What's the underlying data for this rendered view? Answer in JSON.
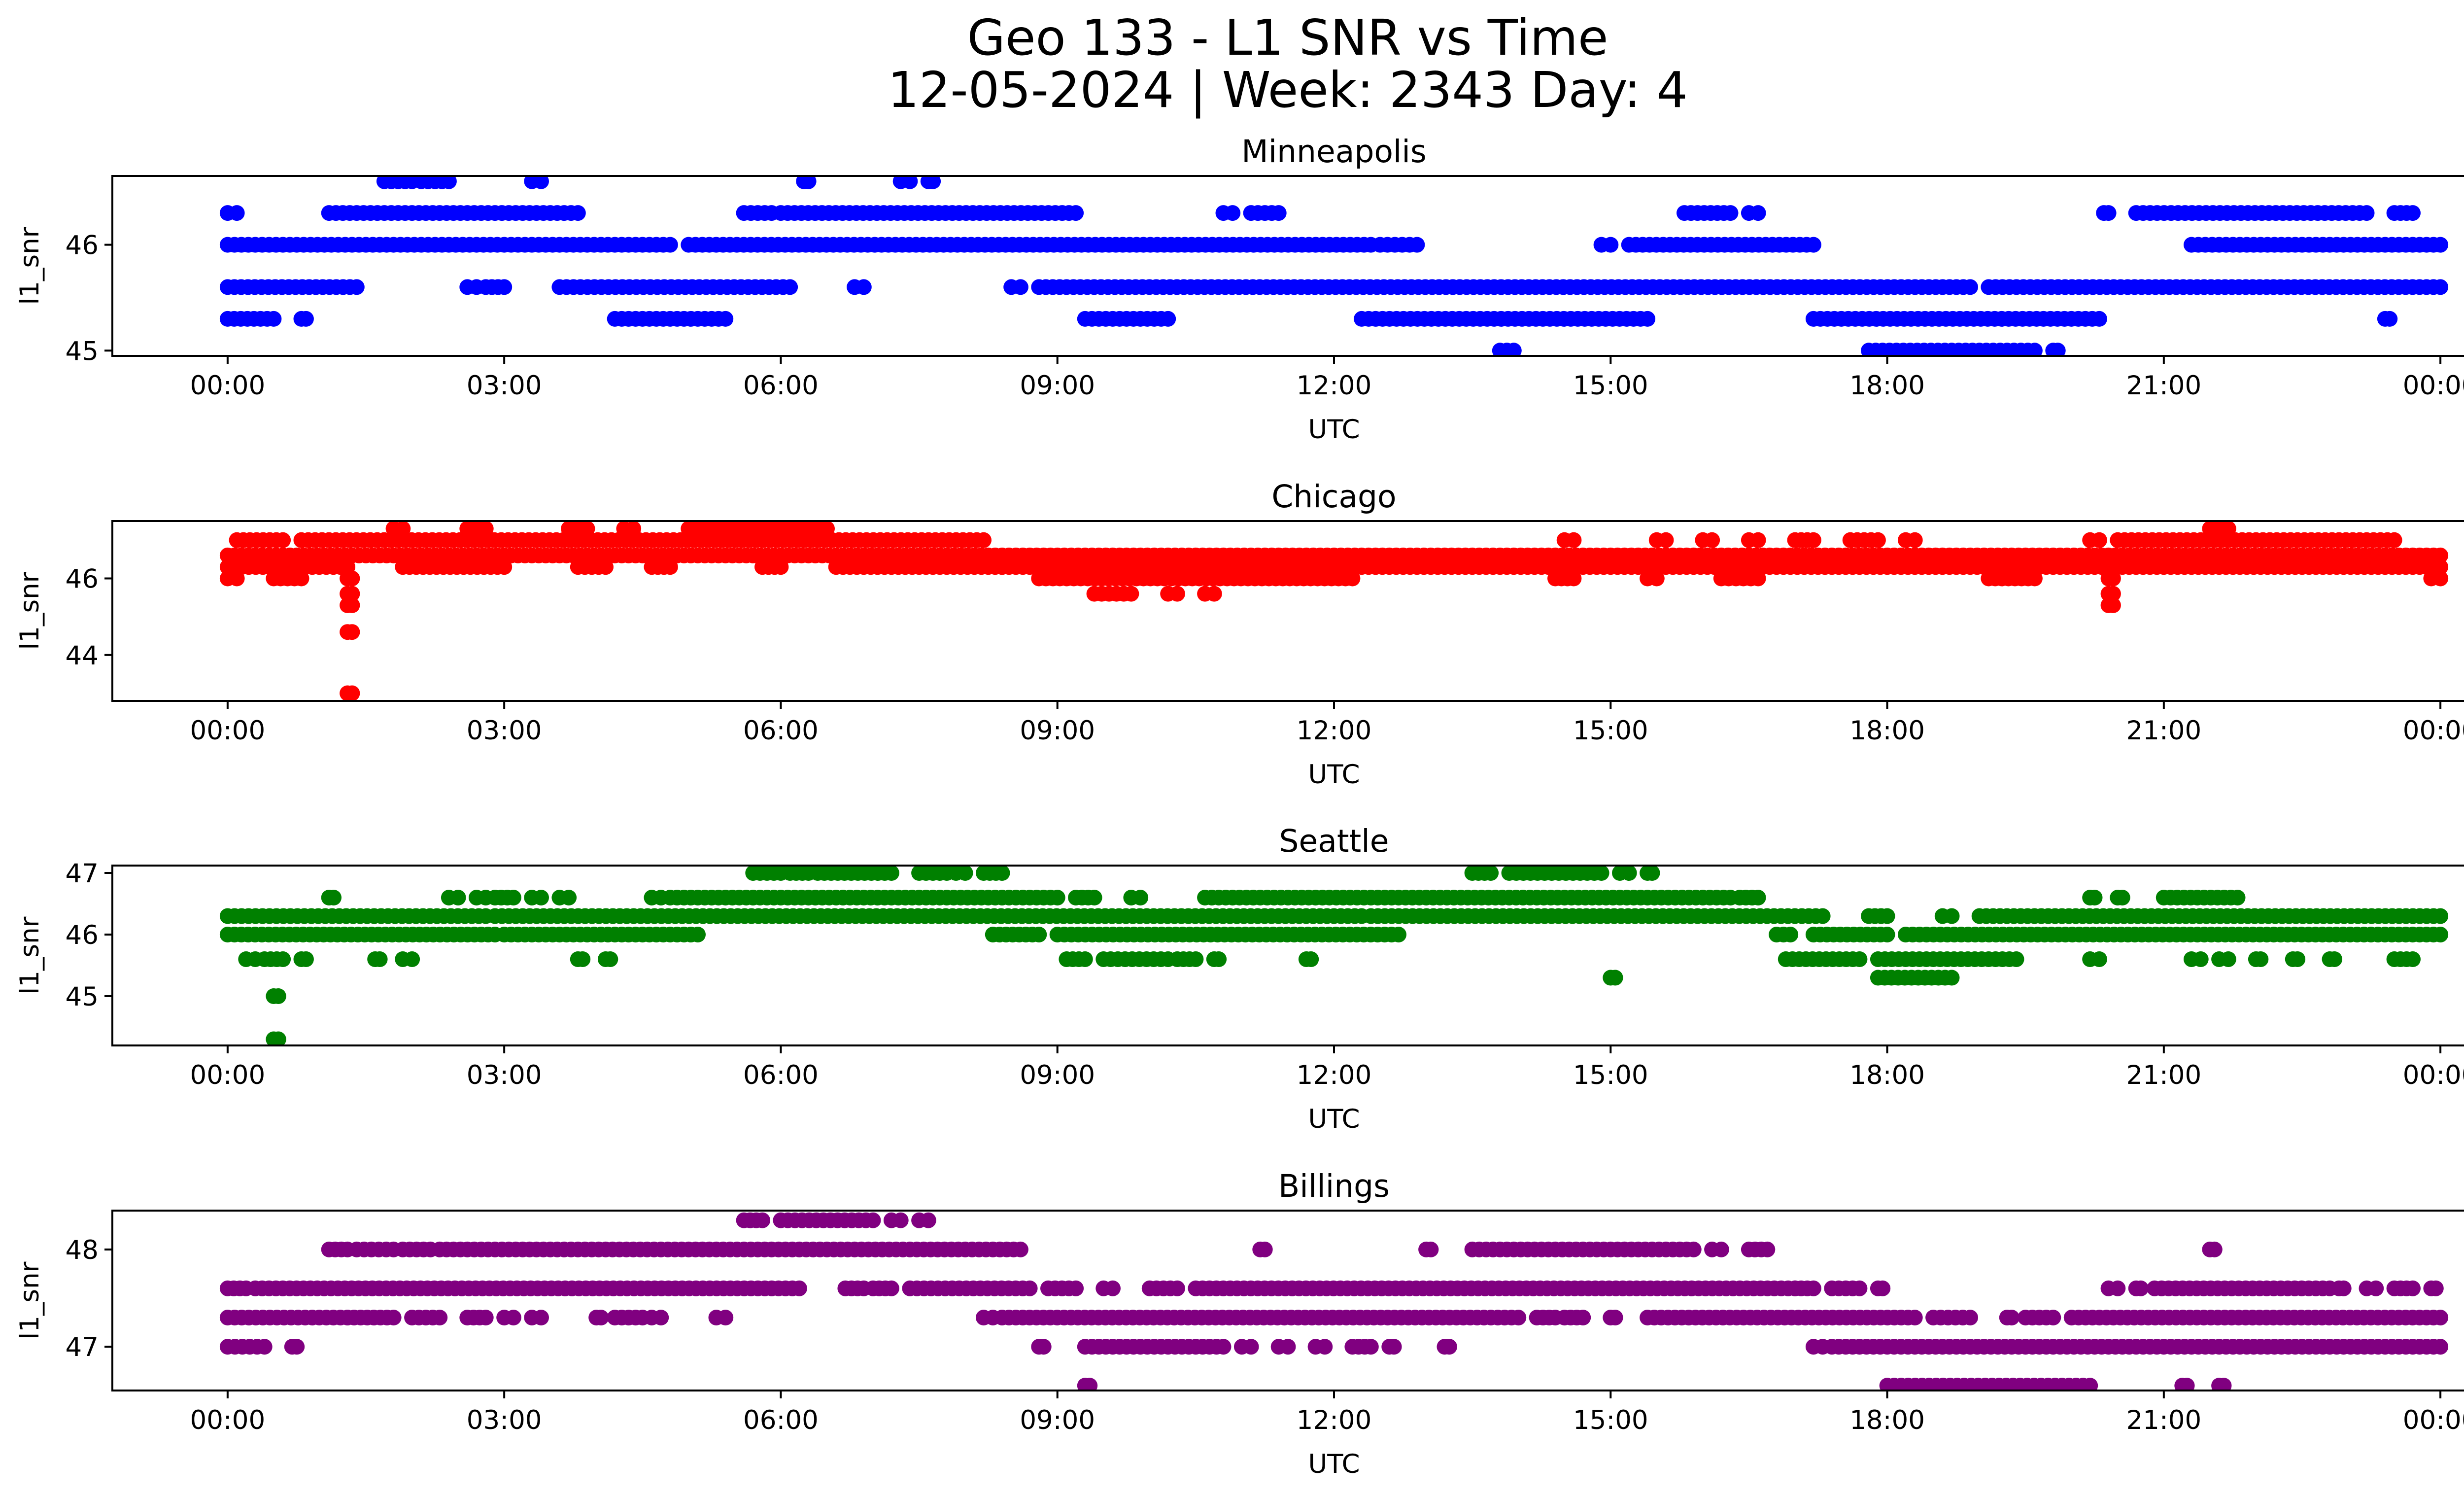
{
  "figure": {
    "title_line1": "Geo 133 - L1 SNR vs Time",
    "title_line2": "12-05-2024 | Week: 2343 Day: 4"
  },
  "chart_data": [
    {
      "type": "scatter",
      "title": "Minneapolis",
      "xlabel": "UTC",
      "ylabel": "l1_snr",
      "color": "#0000ff",
      "xlim": [
        -1.25,
        25.25
      ],
      "ylim": [
        44.95,
        46.65
      ],
      "x_ticks": [
        0,
        3,
        6,
        9,
        12,
        15,
        18,
        21,
        24
      ],
      "x_tick_labels": [
        "00:00",
        "03:00",
        "06:00",
        "09:00",
        "12:00",
        "15:00",
        "18:00",
        "21:00",
        "00:00"
      ],
      "y_ticks": [
        45,
        46
      ],
      "bands": [
        {
          "y": 46.6,
          "ranges": [
            [
              1.7,
              2.0
            ],
            [
              2.1,
              2.4
            ],
            [
              3.3,
              3.4
            ],
            [
              6.25,
              6.3
            ],
            [
              7.3,
              7.4
            ],
            [
              7.6,
              7.65
            ]
          ]
        },
        {
          "y": 46.3,
          "ranges": [
            [
              0.0,
              0.1
            ],
            [
              1.1,
              3.8
            ],
            [
              5.6,
              5.9
            ],
            [
              6.0,
              9.2
            ],
            [
              10.8,
              10.9
            ],
            [
              11.1,
              11.4
            ],
            [
              15.8,
              16.3
            ],
            [
              16.5,
              16.6
            ],
            [
              20.35,
              20.4
            ],
            [
              20.7,
              23.2
            ],
            [
              23.5,
              23.7
            ]
          ]
        },
        {
          "y": 46.0,
          "ranges": [
            [
              0.0,
              4.8
            ],
            [
              5.0,
              12.4
            ],
            [
              12.5,
              12.9
            ],
            [
              14.9,
              15.0
            ],
            [
              15.2,
              17.2
            ],
            [
              21.3,
              24.0
            ]
          ]
        },
        {
          "y": 45.6,
          "ranges": [
            [
              0.0,
              1.4
            ],
            [
              2.6,
              2.7
            ],
            [
              2.8,
              3.0
            ],
            [
              3.6,
              6.1
            ],
            [
              6.8,
              6.9
            ],
            [
              8.5,
              8.6
            ],
            [
              8.8,
              18.9
            ],
            [
              19.1,
              24.0
            ]
          ]
        },
        {
          "y": 45.3,
          "ranges": [
            [
              0.0,
              0.5
            ],
            [
              0.8,
              0.85
            ],
            [
              4.2,
              5.4
            ],
            [
              9.3,
              10.2
            ],
            [
              12.3,
              15.4
            ],
            [
              17.2,
              20.3
            ],
            [
              23.4,
              23.45
            ]
          ]
        },
        {
          "y": 45.0,
          "ranges": [
            [
              13.8,
              13.95
            ],
            [
              17.8,
              19.6
            ],
            [
              19.8,
              19.85
            ]
          ]
        }
      ]
    },
    {
      "type": "scatter",
      "title": "Chicago",
      "xlabel": "UTC",
      "ylabel": "l1_snr",
      "color": "#ff0000",
      "xlim": [
        -1.25,
        25.25
      ],
      "ylim": [
        42.8,
        47.5
      ],
      "x_ticks": [
        0,
        3,
        6,
        9,
        12,
        15,
        18,
        21,
        24
      ],
      "x_tick_labels": [
        "00:00",
        "03:00",
        "06:00",
        "09:00",
        "12:00",
        "15:00",
        "18:00",
        "21:00",
        "00:00"
      ],
      "y_ticks": [
        44,
        46
      ],
      "bands": [
        {
          "y": 47.3,
          "ranges": [
            [
              1.8,
              1.9
            ],
            [
              2.6,
              2.8
            ],
            [
              3.7,
              3.9
            ],
            [
              4.3,
              4.4
            ],
            [
              5.0,
              6.5
            ],
            [
              21.5,
              21.7
            ]
          ]
        },
        {
          "y": 47.0,
          "ranges": [
            [
              0.1,
              0.6
            ],
            [
              0.8,
              8.2
            ],
            [
              14.5,
              14.6
            ],
            [
              15.5,
              15.6
            ],
            [
              16.0,
              16.1
            ],
            [
              16.5,
              16.6
            ],
            [
              17.0,
              17.2
            ],
            [
              17.6,
              17.9
            ],
            [
              18.2,
              18.3
            ],
            [
              20.2,
              20.3
            ],
            [
              20.5,
              23.5
            ]
          ]
        },
        {
          "y": 46.6,
          "ranges": [
            [
              0.0,
              24.0
            ]
          ]
        },
        {
          "y": 46.3,
          "ranges": [
            [
              0.0,
              1.3
            ],
            [
              1.9,
              3.0
            ],
            [
              3.8,
              4.1
            ],
            [
              4.6,
              4.8
            ],
            [
              5.8,
              6.0
            ],
            [
              6.6,
              8.4
            ],
            [
              8.4,
              24.0
            ]
          ]
        },
        {
          "y": 46.0,
          "ranges": [
            [
              0.0,
              0.1
            ],
            [
              0.5,
              0.8
            ],
            [
              1.3,
              1.35
            ],
            [
              8.8,
              12.2
            ],
            [
              14.4,
              14.6
            ],
            [
              15.4,
              15.5
            ],
            [
              16.2,
              16.6
            ],
            [
              19.1,
              19.6
            ],
            [
              20.4,
              20.45
            ],
            [
              23.9,
              24.0
            ]
          ]
        },
        {
          "y": 45.6,
          "ranges": [
            [
              1.3,
              1.35
            ],
            [
              9.4,
              9.8
            ],
            [
              10.2,
              10.3
            ],
            [
              10.6,
              10.7
            ],
            [
              20.4,
              20.45
            ]
          ]
        },
        {
          "y": 45.3,
          "ranges": [
            [
              1.3,
              1.35
            ],
            [
              20.4,
              20.45
            ]
          ]
        },
        {
          "y": 44.6,
          "ranges": [
            [
              1.3,
              1.35
            ]
          ]
        },
        {
          "y": 43.0,
          "ranges": [
            [
              1.3,
              1.35
            ]
          ]
        }
      ]
    },
    {
      "type": "scatter",
      "title": "Seattle",
      "xlabel": "UTC",
      "ylabel": "l1_snr",
      "color": "#008000",
      "xlim": [
        -1.25,
        25.25
      ],
      "ylim": [
        44.2,
        47.12
      ],
      "x_ticks": [
        0,
        3,
        6,
        9,
        12,
        15,
        18,
        21,
        24
      ],
      "x_tick_labels": [
        "00:00",
        "03:00",
        "06:00",
        "09:00",
        "12:00",
        "15:00",
        "18:00",
        "21:00",
        "00:00"
      ],
      "y_ticks": [
        45,
        46,
        47
      ],
      "bands": [
        {
          "y": 47.0,
          "ranges": [
            [
              5.7,
              6.0
            ],
            [
              6.1,
              6.3
            ],
            [
              6.4,
              7.2
            ],
            [
              7.5,
              7.8
            ],
            [
              7.9,
              8.0
            ],
            [
              8.2,
              8.4
            ],
            [
              13.5,
              13.7
            ],
            [
              13.9,
              14.9
            ],
            [
              15.1,
              15.2
            ],
            [
              15.4,
              15.45
            ]
          ]
        },
        {
          "y": 46.6,
          "ranges": [
            [
              1.1,
              1.15
            ],
            [
              2.4,
              2.5
            ],
            [
              2.7,
              2.8
            ],
            [
              2.9,
              3.1
            ],
            [
              3.3,
              3.4
            ],
            [
              3.6,
              3.7
            ],
            [
              4.6,
              4.7
            ],
            [
              4.8,
              9.0
            ],
            [
              9.2,
              9.4
            ],
            [
              9.8,
              9.9
            ],
            [
              10.6,
              16.3
            ],
            [
              16.4,
              16.6
            ],
            [
              20.2,
              20.25
            ],
            [
              20.5,
              20.55
            ],
            [
              21.0,
              21.8
            ]
          ]
        },
        {
          "y": 46.3,
          "ranges": [
            [
              0.0,
              2.8
            ],
            [
              2.9,
              12.3
            ],
            [
              12.4,
              17.3
            ],
            [
              17.8,
              18.0
            ],
            [
              18.6,
              18.7
            ],
            [
              19.0,
              24.0
            ]
          ]
        },
        {
          "y": 46.0,
          "ranges": [
            [
              0.0,
              2.9
            ],
            [
              3.0,
              5.1
            ],
            [
              8.3,
              8.8
            ],
            [
              9.0,
              12.7
            ],
            [
              16.8,
              16.95
            ],
            [
              17.2,
              18.0
            ],
            [
              18.2,
              24.0
            ]
          ]
        },
        {
          "y": 45.6,
          "ranges": [
            [
              0.2,
              0.3
            ],
            [
              0.4,
              0.6
            ],
            [
              0.8,
              0.85
            ],
            [
              1.6,
              1.65
            ],
            [
              1.9,
              2.0
            ],
            [
              3.8,
              3.85
            ],
            [
              4.1,
              4.15
            ],
            [
              9.1,
              9.3
            ],
            [
              9.5,
              10.2
            ],
            [
              10.3,
              10.5
            ],
            [
              10.7,
              10.75
            ],
            [
              11.7,
              11.75
            ],
            [
              16.9,
              17.7
            ],
            [
              17.9,
              19.4
            ],
            [
              20.2,
              20.3
            ],
            [
              21.3,
              21.4
            ],
            [
              21.6,
              21.7
            ],
            [
              22.0,
              22.05
            ],
            [
              22.4,
              22.45
            ],
            [
              22.8,
              22.85
            ],
            [
              23.5,
              23.7
            ]
          ]
        },
        {
          "y": 45.3,
          "ranges": [
            [
              15.0,
              15.05
            ],
            [
              17.9,
              18.7
            ]
          ]
        },
        {
          "y": 45.0,
          "ranges": [
            [
              0.5,
              0.55
            ]
          ]
        },
        {
          "y": 44.3,
          "ranges": [
            [
              0.5,
              0.55
            ]
          ]
        }
      ]
    },
    {
      "type": "scatter",
      "title": "Billings",
      "xlabel": "UTC",
      "ylabel": "l1_snr",
      "color": "#800080",
      "xlim": [
        -1.25,
        25.25
      ],
      "ylim": [
        46.55,
        48.4
      ],
      "x_ticks": [
        0,
        3,
        6,
        9,
        12,
        15,
        18,
        21,
        24
      ],
      "x_tick_labels": [
        "00:00",
        "03:00",
        "06:00",
        "09:00",
        "12:00",
        "15:00",
        "18:00",
        "21:00",
        "00:00"
      ],
      "y_ticks": [
        47,
        48
      ],
      "bands": [
        {
          "y": 48.3,
          "ranges": [
            [
              5.6,
              5.8
            ],
            [
              6.0,
              7.0
            ],
            [
              7.2,
              7.3
            ],
            [
              7.5,
              7.6
            ]
          ]
        },
        {
          "y": 48.0,
          "ranges": [
            [
              1.1,
              1.3
            ],
            [
              1.4,
              1.8
            ],
            [
              1.9,
              2.2
            ],
            [
              2.3,
              8.6
            ],
            [
              11.2,
              11.25
            ],
            [
              13.0,
              13.05
            ],
            [
              13.5,
              15.9
            ],
            [
              16.1,
              16.2
            ],
            [
              16.5,
              16.7
            ],
            [
              21.5,
              21.55
            ]
          ]
        },
        {
          "y": 47.6,
          "ranges": [
            [
              0.0,
              0.2
            ],
            [
              0.3,
              6.2
            ],
            [
              6.7,
              6.9
            ],
            [
              7.0,
              7.2
            ],
            [
              7.4,
              8.7
            ],
            [
              8.9,
              9.2
            ],
            [
              9.5,
              9.6
            ],
            [
              10.0,
              10.3
            ],
            [
              10.5,
              17.0
            ],
            [
              17.0,
              17.2
            ],
            [
              17.4,
              17.7
            ],
            [
              17.9,
              17.95
            ],
            [
              20.4,
              20.5
            ],
            [
              20.7,
              20.75
            ],
            [
              20.9,
              22.8
            ],
            [
              22.9,
              22.95
            ],
            [
              23.2,
              23.3
            ],
            [
              23.5,
              23.7
            ],
            [
              23.9,
              23.95
            ]
          ]
        },
        {
          "y": 47.3,
          "ranges": [
            [
              0.0,
              1.3
            ],
            [
              1.3,
              1.8
            ],
            [
              2.0,
              2.3
            ],
            [
              2.6,
              2.8
            ],
            [
              3.0,
              3.1
            ],
            [
              3.3,
              3.4
            ],
            [
              4.0,
              4.05
            ],
            [
              4.2,
              4.5
            ],
            [
              4.6,
              4.7
            ],
            [
              5.3,
              5.4
            ],
            [
              8.2,
              8.3
            ],
            [
              8.4,
              14.0
            ],
            [
              14.2,
              14.4
            ],
            [
              14.5,
              14.7
            ],
            [
              15.0,
              15.05
            ],
            [
              15.4,
              18.3
            ],
            [
              18.5,
              18.9
            ],
            [
              19.3,
              19.35
            ],
            [
              19.5,
              19.8
            ],
            [
              20.0,
              24.0
            ]
          ]
        },
        {
          "y": 47.0,
          "ranges": [
            [
              0.0,
              0.4
            ],
            [
              0.7,
              0.75
            ],
            [
              8.8,
              8.85
            ],
            [
              9.3,
              10.8
            ],
            [
              11.0,
              11.1
            ],
            [
              11.4,
              11.5
            ],
            [
              11.8,
              11.9
            ],
            [
              12.2,
              12.4
            ],
            [
              12.6,
              12.65
            ],
            [
              13.2,
              13.25
            ],
            [
              17.2,
              17.3
            ],
            [
              17.4,
              24.0
            ]
          ]
        },
        {
          "y": 46.6,
          "ranges": [
            [
              9.3,
              9.35
            ],
            [
              18.0,
              20.2
            ],
            [
              21.2,
              21.25
            ],
            [
              21.6,
              21.65
            ]
          ]
        }
      ]
    }
  ]
}
